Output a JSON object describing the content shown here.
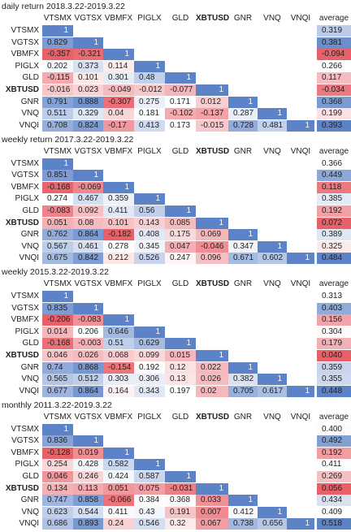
{
  "tables": [
    {
      "title": "daily return 2018.3.22-2019.3.22",
      "columns": [
        "VTSMX",
        "VGTSX",
        "VBMFX",
        "PIGLX",
        "GLD",
        "XBTUSD",
        "GNR",
        "VNQ",
        "VNQI"
      ],
      "average_header": "average",
      "rows": [
        {
          "label": "VTSMX",
          "cells": [
            "1"
          ],
          "average": "0.319"
        },
        {
          "label": "VGTSX",
          "cells": [
            "0.829",
            "1"
          ],
          "average": "0.381"
        },
        {
          "label": "VBMFX",
          "cells": [
            "-0.357",
            "-0.321",
            "1"
          ],
          "average": "-0.094"
        },
        {
          "label": "PIGLX",
          "cells": [
            "0.202",
            "0.373",
            "0.114",
            "1"
          ],
          "average": "0.266"
        },
        {
          "label": "GLD",
          "cells": [
            "-0.115",
            "0.101",
            "0.301",
            "0.48",
            "1"
          ],
          "average": "0.117"
        },
        {
          "label": "XBTUSD",
          "cells": [
            "-0.016",
            "0.023",
            "-0.049",
            "-0.012",
            "-0.077",
            "1"
          ],
          "average": "-0.034"
        },
        {
          "label": "GNR",
          "cells": [
            "0.791",
            "0.888",
            "-0.307",
            "0.275",
            "0.171",
            "0.012",
            "1"
          ],
          "average": "0.368"
        },
        {
          "label": "VNQ",
          "cells": [
            "0.511",
            "0.329",
            "0.04",
            "0.181",
            "-0.102",
            "-0.137",
            "0.287",
            "1"
          ],
          "average": "0.199"
        },
        {
          "label": "VNQI",
          "cells": [
            "0.708",
            "0.824",
            "-0.17",
            "0.413",
            "0.173",
            "-0.015",
            "0.728",
            "0.481",
            "1"
          ],
          "average": "0.393"
        }
      ]
    },
    {
      "title": "weekly return 2017.3.22-2019.3.22",
      "columns": [
        "VTSMX",
        "VGTSX",
        "VBMFX",
        "PIGLX",
        "GLD",
        "XBTUSD",
        "GNR",
        "VNQ",
        "VNQI"
      ],
      "average_header": "average",
      "rows": [
        {
          "label": "VTSMX",
          "cells": [
            "1"
          ],
          "average": "0.366"
        },
        {
          "label": "VGTSX",
          "cells": [
            "0.851",
            "1"
          ],
          "average": "0.449"
        },
        {
          "label": "VBMFX",
          "cells": [
            "-0.168",
            "-0.069",
            "1"
          ],
          "average": "0.118"
        },
        {
          "label": "PIGLX",
          "cells": [
            "0.274",
            "0.467",
            "0.359",
            "1"
          ],
          "average": "0.385"
        },
        {
          "label": "GLD",
          "cells": [
            "-0.083",
            "0.092",
            "0.411",
            "0.56",
            "1"
          ],
          "average": "0.192"
        },
        {
          "label": "XBTUSD",
          "cells": [
            "0.051",
            "0.08",
            "0.101",
            "0.143",
            "0.085",
            "1"
          ],
          "average": "0.072"
        },
        {
          "label": "GNR",
          "cells": [
            "0.762",
            "0.864",
            "-0.182",
            "0.408",
            "0.175",
            "0.069",
            "1"
          ],
          "average": "0.389"
        },
        {
          "label": "VNQ",
          "cells": [
            "0.567",
            "0.461",
            "0.278",
            "0.345",
            "0.047",
            "-0.046",
            "0.347",
            "1"
          ],
          "average": "0.325"
        },
        {
          "label": "VNQI",
          "cells": [
            "0.675",
            "0.842",
            "0.212",
            "0.526",
            "0.247",
            "0.096",
            "0.671",
            "0.602",
            "1"
          ],
          "average": "0.484"
        }
      ]
    },
    {
      "title": "weekly 2015.3.22-2019.3.22",
      "columns": [
        "VTSMX",
        "VGTSX",
        "VBMFX",
        "PIGLX",
        "GLD",
        "XBTUSD",
        "GNR",
        "VNQ",
        "VNQI"
      ],
      "average_header": "average",
      "rows": [
        {
          "label": "VTSMX",
          "cells": [
            "1"
          ],
          "average": "0.313"
        },
        {
          "label": "VGTSX",
          "cells": [
            "0.835",
            "1"
          ],
          "average": "0.403"
        },
        {
          "label": "VBMFX",
          "cells": [
            "-0.206",
            "-0.083",
            "1"
          ],
          "average": "0.156"
        },
        {
          "label": "PIGLX",
          "cells": [
            "0.014",
            "0.206",
            "0.646",
            "1"
          ],
          "average": "0.304"
        },
        {
          "label": "GLD",
          "cells": [
            "-0.168",
            "-0.003",
            "0.51",
            "0.629",
            "1"
          ],
          "average": "0.179"
        },
        {
          "label": "XBTUSD",
          "cells": [
            "0.046",
            "0.026",
            "0.068",
            "0.099",
            "0.015",
            "1"
          ],
          "average": "0.040"
        },
        {
          "label": "GNR",
          "cells": [
            "0.74",
            "0.868",
            "-0.154",
            "0.192",
            "0.12",
            "0.022",
            "1"
          ],
          "average": "0.359"
        },
        {
          "label": "VNQ",
          "cells": [
            "0.565",
            "0.512",
            "0.303",
            "0.306",
            "0.13",
            "0.026",
            "0.382",
            "1"
          ],
          "average": "0.355"
        },
        {
          "label": "VNQI",
          "cells": [
            "0.677",
            "0.864",
            "0.164",
            "0.343",
            "0.197",
            "0.02",
            "0.705",
            "0.617",
            "1"
          ],
          "average": "0.448"
        }
      ]
    },
    {
      "title": "monthly 2011.3.22-2019.3.22",
      "columns": [
        "VTSMX",
        "VGTSX",
        "VBMFX",
        "PIGLX",
        "GLD",
        "XBTUSD",
        "GNR",
        "VNQ",
        "VNQI"
      ],
      "average_header": "average",
      "rows": [
        {
          "label": "VTSMX",
          "cells": [
            "1"
          ],
          "average": "0.400"
        },
        {
          "label": "VGTSX",
          "cells": [
            "0.836",
            "1"
          ],
          "average": "0.492"
        },
        {
          "label": "VBMFX",
          "cells": [
            "-0.128",
            "0.019",
            "1"
          ],
          "average": "0.192"
        },
        {
          "label": "PIGLX",
          "cells": [
            "0.254",
            "0.428",
            "0.582",
            "1"
          ],
          "average": "0.411"
        },
        {
          "label": "GLD",
          "cells": [
            "0.046",
            "0.246",
            "0.424",
            "0.587",
            "1"
          ],
          "average": "0.269"
        },
        {
          "label": "XBTUSD",
          "cells": [
            "0.134",
            "0.113",
            "0.051",
            "0.075",
            "-0.031",
            "1"
          ],
          "average": "0.056"
        },
        {
          "label": "GNR",
          "cells": [
            "0.747",
            "0.858",
            "-0.066",
            "0.384",
            "0.368",
            "0.033",
            "1"
          ],
          "average": "0.434"
        },
        {
          "label": "VNQ",
          "cells": [
            "0.623",
            "0.544",
            "0.411",
            "0.43",
            "0.191",
            "0.007",
            "0.412",
            "1"
          ],
          "average": "0.409"
        },
        {
          "label": "VNQI",
          "cells": [
            "0.686",
            "0.893",
            "0.24",
            "0.546",
            "0.32",
            "0.067",
            "0.738",
            "0.656",
            "1"
          ],
          "average": "0.518"
        }
      ]
    }
  ]
}
